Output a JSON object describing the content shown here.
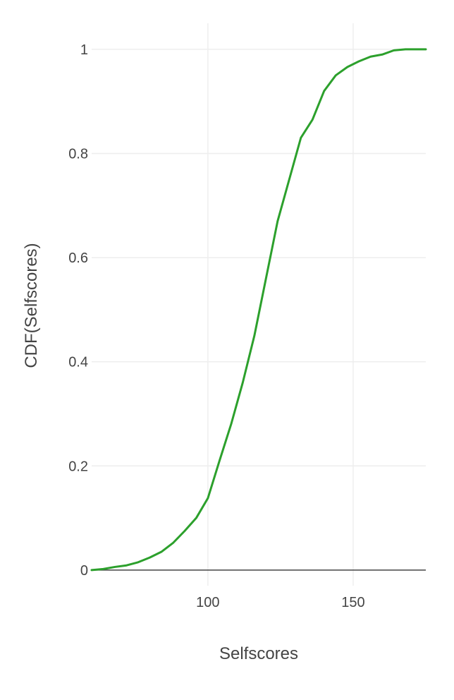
{
  "chart_data": {
    "type": "line",
    "title": "",
    "xlabel": "Selfscores",
    "ylabel": "CDF(Selfscores)",
    "xlim": [
      60,
      175
    ],
    "ylim": [
      -0.03,
      1.05
    ],
    "xticks": [
      100,
      150
    ],
    "xtick_labels": [
      "100",
      "150"
    ],
    "yticks": [
      0,
      0.2,
      0.4,
      0.6,
      0.8,
      1
    ],
    "ytick_labels": [
      "0",
      "0.2",
      "0.4",
      "0.6",
      "0.8",
      "1"
    ],
    "grid": true,
    "legend": "none",
    "series": [
      {
        "color": "#2ca02c",
        "x": [
          60,
          64,
          68,
          72,
          76,
          80,
          84,
          88,
          92,
          96,
          100,
          104,
          108,
          112,
          116,
          120,
          124,
          128,
          132,
          136,
          140,
          144,
          148,
          152,
          156,
          160,
          164,
          168,
          172,
          175
        ],
        "y": [
          0.0,
          0.002,
          0.006,
          0.009,
          0.015,
          0.024,
          0.035,
          0.052,
          0.075,
          0.1,
          0.138,
          0.21,
          0.28,
          0.36,
          0.45,
          0.56,
          0.67,
          0.75,
          0.83,
          0.865,
          0.92,
          0.95,
          0.966,
          0.977,
          0.986,
          0.99,
          0.998,
          1.0,
          1.0,
          1.0
        ]
      }
    ]
  }
}
